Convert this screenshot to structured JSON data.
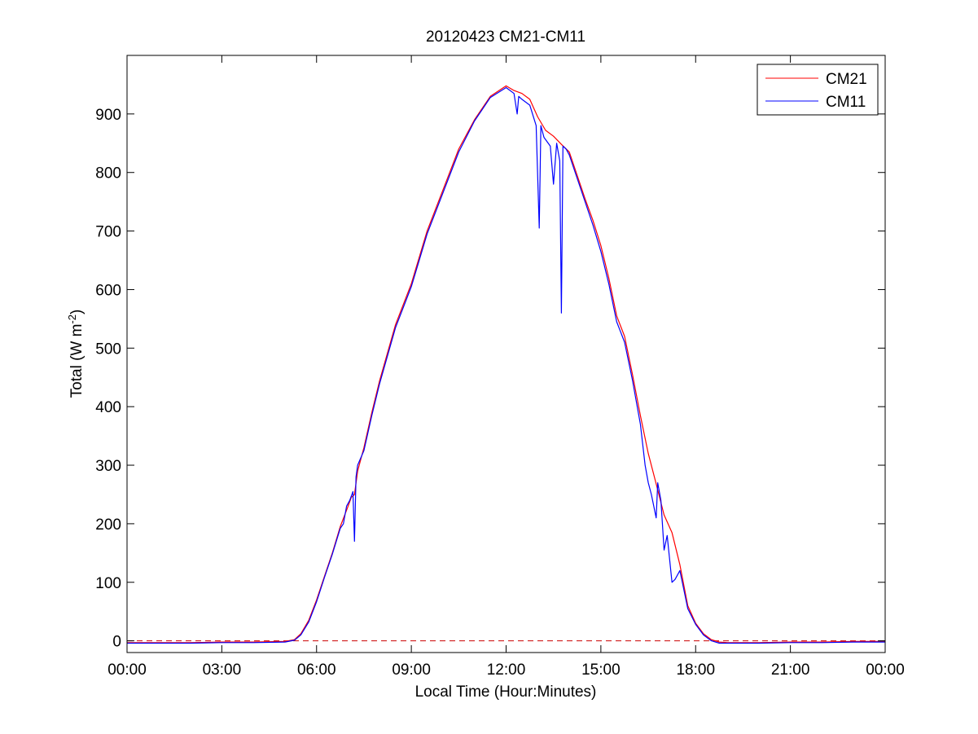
{
  "chart_data": {
    "type": "line",
    "title": "20120423 CM21-CM11",
    "xlabel": "Local Time (Hour:Minutes)",
    "ylabel": {
      "main": "Total (W m",
      "sup": "-2",
      "close": ")"
    },
    "xlim": [
      0,
      24
    ],
    "ylim": [
      -20,
      1000
    ],
    "x_ticks": [
      0,
      3,
      6,
      9,
      12,
      15,
      18,
      21,
      24
    ],
    "x_tick_labels": [
      "00:00",
      "03:00",
      "06:00",
      "09:00",
      "12:00",
      "15:00",
      "18:00",
      "21:00",
      "00:00"
    ],
    "y_ticks": [
      0,
      100,
      200,
      300,
      400,
      500,
      600,
      700,
      800,
      900
    ],
    "y_tick_labels": [
      "0",
      "100",
      "200",
      "300",
      "400",
      "500",
      "600",
      "700",
      "800",
      "900"
    ],
    "grid": false,
    "legend_position": "top-right",
    "reference_line": {
      "y": 0,
      "style": "dashed",
      "color": "#cc0000"
    },
    "series": [
      {
        "name": "CM21",
        "color": "#ff0000",
        "x": [
          0,
          1,
          2,
          3,
          4,
          5,
          5.3,
          5.5,
          5.75,
          6,
          6.25,
          6.5,
          6.75,
          7,
          7.1,
          7.2,
          7.3,
          7.5,
          7.75,
          8,
          8.5,
          9,
          9.5,
          10,
          10.5,
          11,
          11.5,
          12,
          12.25,
          12.5,
          12.75,
          13,
          13.25,
          13.5,
          13.75,
          14,
          14.25,
          14.5,
          14.75,
          15,
          15.25,
          15.5,
          15.75,
          16,
          16.25,
          16.5,
          16.75,
          17,
          17.25,
          17.5,
          17.75,
          18,
          18.25,
          18.5,
          18.75,
          19,
          20,
          21,
          22,
          23,
          24
        ],
        "y": [
          -3,
          -3,
          -3,
          -2,
          -2,
          -1,
          2,
          12,
          35,
          70,
          110,
          150,
          195,
          230,
          245,
          250,
          290,
          330,
          390,
          445,
          540,
          610,
          700,
          770,
          840,
          890,
          930,
          948,
          940,
          935,
          925,
          895,
          872,
          862,
          848,
          835,
          795,
          755,
          718,
          675,
          620,
          555,
          520,
          455,
          385,
          320,
          268,
          215,
          185,
          130,
          60,
          30,
          12,
          2,
          -2,
          -3,
          -3,
          -2,
          -2,
          -1,
          -1
        ]
      },
      {
        "name": "CM11",
        "color": "#0000ff",
        "x": [
          0,
          1,
          2,
          3,
          4,
          5,
          5.3,
          5.5,
          5.75,
          6,
          6.25,
          6.5,
          6.75,
          6.85,
          6.95,
          7.05,
          7.15,
          7.2,
          7.25,
          7.3,
          7.5,
          7.75,
          8,
          8.5,
          9,
          9.5,
          10,
          10.5,
          11,
          11.5,
          12,
          12.25,
          12.35,
          12.4,
          12.5,
          12.75,
          12.95,
          13.05,
          13.1,
          13.2,
          13.4,
          13.5,
          13.6,
          13.7,
          13.75,
          13.8,
          13.9,
          14,
          14.25,
          14.5,
          14.75,
          15,
          15.25,
          15.5,
          15.75,
          16,
          16.25,
          16.4,
          16.5,
          16.6,
          16.75,
          16.8,
          16.9,
          17,
          17.1,
          17.25,
          17.35,
          17.5,
          17.75,
          18,
          18.25,
          18.5,
          18.75,
          19,
          20,
          21,
          22,
          23,
          24
        ],
        "y": [
          -4,
          -4,
          -4,
          -3,
          -3,
          -2,
          1,
          10,
          32,
          67,
          108,
          148,
          192,
          200,
          230,
          240,
          255,
          170,
          280,
          300,
          325,
          385,
          440,
          535,
          605,
          695,
          765,
          835,
          888,
          928,
          945,
          935,
          900,
          930,
          925,
          915,
          880,
          705,
          880,
          860,
          845,
          780,
          850,
          820,
          560,
          845,
          840,
          830,
          790,
          750,
          710,
          665,
          610,
          545,
          510,
          445,
          370,
          300,
          270,
          250,
          210,
          270,
          240,
          155,
          180,
          100,
          105,
          120,
          55,
          28,
          10,
          0,
          -4,
          -4,
          -4,
          -3,
          -3,
          -2,
          -2
        ]
      }
    ]
  }
}
